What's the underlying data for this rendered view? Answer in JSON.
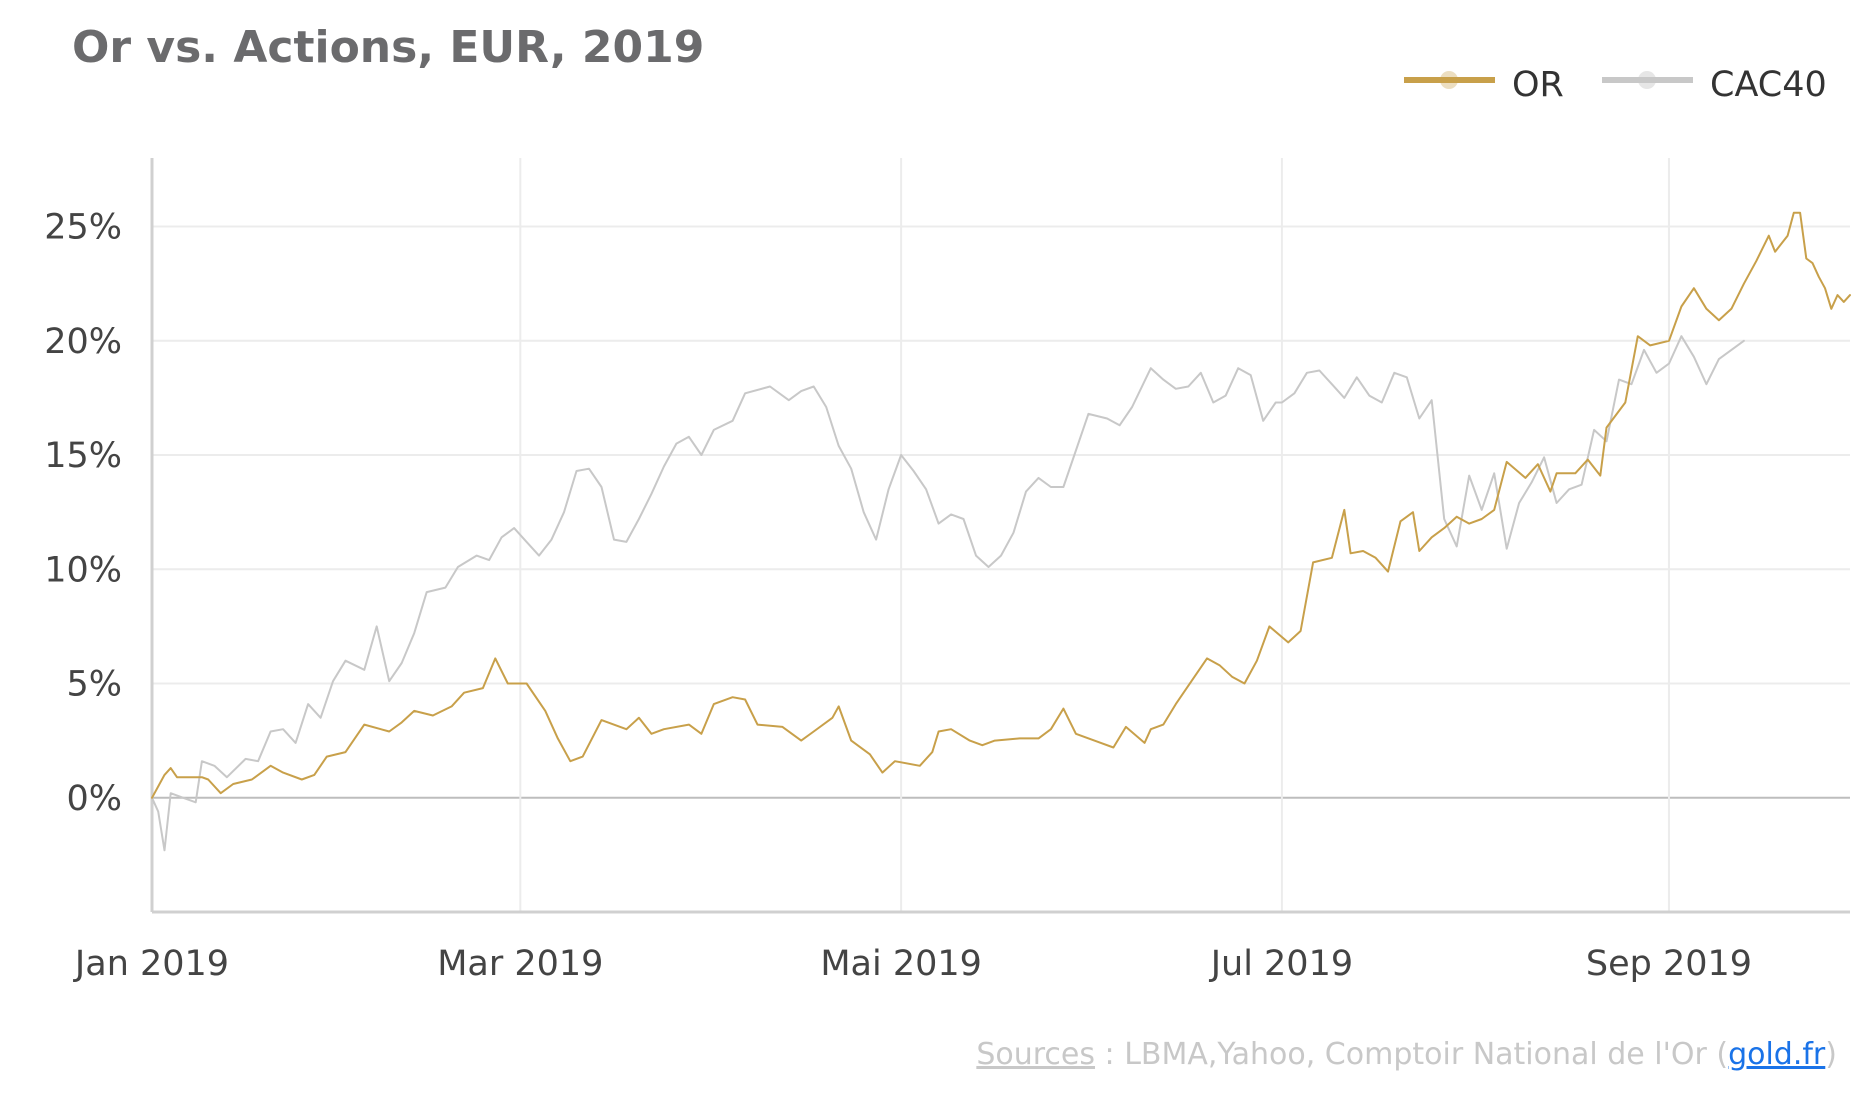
{
  "chart_data": {
    "type": "line",
    "title": "Or vs. Actions,  EUR, 2019",
    "x_tick_labels": [
      "Jan 2019",
      "Mar 2019",
      "Mai 2019",
      "Jul 2019",
      "Sep 2019"
    ],
    "x_tick_dates": [
      "2019-01-01",
      "2019-03-01",
      "2019-05-01",
      "2019-07-01",
      "2019-09-01"
    ],
    "x_range": [
      "2019-01-01",
      "2019-09-30"
    ],
    "y_tick_labels": [
      "0%",
      "5%",
      "10%",
      "15%",
      "20%",
      "25%"
    ],
    "y_ticks": [
      0,
      5,
      10,
      15,
      20,
      25
    ],
    "ylim": [
      -5,
      28
    ],
    "y_unit": "%",
    "grid": true,
    "legend_position": "top-right",
    "series": [
      {
        "name": "OR",
        "color": "#c8a04a",
        "points": [
          [
            "2019-01-01",
            0
          ],
          [
            "2019-01-03",
            1.0
          ],
          [
            "2019-01-04",
            1.3
          ],
          [
            "2019-01-05",
            0.9
          ],
          [
            "2019-01-09",
            0.9
          ],
          [
            "2019-01-10",
            0.8
          ],
          [
            "2019-01-12",
            0.2
          ],
          [
            "2019-01-14",
            0.6
          ],
          [
            "2019-01-17",
            0.8
          ],
          [
            "2019-01-20",
            1.4
          ],
          [
            "2019-01-22",
            1.1
          ],
          [
            "2019-01-25",
            0.8
          ],
          [
            "2019-01-27",
            1.0
          ],
          [
            "2019-01-29",
            1.8
          ],
          [
            "2019-02-01",
            2.0
          ],
          [
            "2019-02-04",
            3.2
          ],
          [
            "2019-02-08",
            2.9
          ],
          [
            "2019-02-10",
            3.3
          ],
          [
            "2019-02-12",
            3.8
          ],
          [
            "2019-02-15",
            3.6
          ],
          [
            "2019-02-18",
            4.0
          ],
          [
            "2019-02-20",
            4.6
          ],
          [
            "2019-02-23",
            4.8
          ],
          [
            "2019-02-25",
            6.1
          ],
          [
            "2019-02-27",
            5.0
          ],
          [
            "2019-03-02",
            5.0
          ],
          [
            "2019-03-05",
            3.8
          ],
          [
            "2019-03-07",
            2.6
          ],
          [
            "2019-03-09",
            1.6
          ],
          [
            "2019-03-11",
            1.8
          ],
          [
            "2019-03-14",
            3.4
          ],
          [
            "2019-03-18",
            3.0
          ],
          [
            "2019-03-20",
            3.5
          ],
          [
            "2019-03-22",
            2.8
          ],
          [
            "2019-03-24",
            3.0
          ],
          [
            "2019-03-28",
            3.2
          ],
          [
            "2019-03-30",
            2.8
          ],
          [
            "2019-04-01",
            4.1
          ],
          [
            "2019-04-04",
            4.4
          ],
          [
            "2019-04-06",
            4.3
          ],
          [
            "2019-04-08",
            3.2
          ],
          [
            "2019-04-12",
            3.1
          ],
          [
            "2019-04-15",
            2.5
          ],
          [
            "2019-04-17",
            2.9
          ],
          [
            "2019-04-20",
            3.5
          ],
          [
            "2019-04-21",
            4.0
          ],
          [
            "2019-04-23",
            2.5
          ],
          [
            "2019-04-26",
            1.9
          ],
          [
            "2019-04-28",
            1.1
          ],
          [
            "2019-04-30",
            1.6
          ],
          [
            "2019-05-04",
            1.4
          ],
          [
            "2019-05-06",
            2.0
          ],
          [
            "2019-05-07",
            2.9
          ],
          [
            "2019-05-09",
            3.0
          ],
          [
            "2019-05-12",
            2.5
          ],
          [
            "2019-05-14",
            2.3
          ],
          [
            "2019-05-16",
            2.5
          ],
          [
            "2019-05-20",
            2.6
          ],
          [
            "2019-05-23",
            2.6
          ],
          [
            "2019-05-25",
            3.0
          ],
          [
            "2019-05-27",
            3.9
          ],
          [
            "2019-05-29",
            2.8
          ],
          [
            "2019-06-02",
            2.4
          ],
          [
            "2019-06-04",
            2.2
          ],
          [
            "2019-06-06",
            3.1
          ],
          [
            "2019-06-09",
            2.4
          ],
          [
            "2019-06-10",
            3.0
          ],
          [
            "2019-06-12",
            3.2
          ],
          [
            "2019-06-14",
            4.1
          ],
          [
            "2019-06-17",
            5.3
          ],
          [
            "2019-06-19",
            6.1
          ],
          [
            "2019-06-21",
            5.8
          ],
          [
            "2019-06-23",
            5.3
          ],
          [
            "2019-06-25",
            5.0
          ],
          [
            "2019-06-27",
            6.0
          ],
          [
            "2019-06-29",
            7.5
          ],
          [
            "2019-07-02",
            6.8
          ],
          [
            "2019-07-04",
            7.3
          ],
          [
            "2019-07-06",
            10.3
          ],
          [
            "2019-07-09",
            10.5
          ],
          [
            "2019-07-11",
            12.6
          ],
          [
            "2019-07-12",
            10.7
          ],
          [
            "2019-07-14",
            10.8
          ],
          [
            "2019-07-16",
            10.5
          ],
          [
            "2019-07-18",
            9.9
          ],
          [
            "2019-07-20",
            12.1
          ],
          [
            "2019-07-22",
            12.5
          ],
          [
            "2019-07-23",
            10.8
          ],
          [
            "2019-07-25",
            11.4
          ],
          [
            "2019-07-27",
            11.8
          ],
          [
            "2019-07-29",
            12.3
          ],
          [
            "2019-07-31",
            12.0
          ],
          [
            "2019-08-02",
            12.2
          ],
          [
            "2019-08-04",
            12.6
          ],
          [
            "2019-08-06",
            14.7
          ],
          [
            "2019-08-09",
            14.0
          ],
          [
            "2019-08-11",
            14.6
          ],
          [
            "2019-08-13",
            13.4
          ],
          [
            "2019-08-14",
            14.2
          ],
          [
            "2019-08-17",
            14.2
          ],
          [
            "2019-08-19",
            14.8
          ],
          [
            "2019-08-21",
            14.1
          ],
          [
            "2019-08-22",
            16.2
          ],
          [
            "2019-08-25",
            17.3
          ],
          [
            "2019-08-27",
            20.2
          ],
          [
            "2019-08-29",
            19.8
          ],
          [
            "2019-09-01",
            20.0
          ],
          [
            "2019-09-03",
            21.5
          ],
          [
            "2019-09-05",
            22.3
          ],
          [
            "2019-09-07",
            21.4
          ],
          [
            "2019-09-09",
            20.9
          ],
          [
            "2019-09-11",
            21.4
          ],
          [
            "2019-09-13",
            22.5
          ],
          [
            "2019-09-15",
            23.5
          ],
          [
            "2019-09-17",
            24.6
          ],
          [
            "2019-09-18",
            23.9
          ],
          [
            "2019-09-20",
            24.6
          ],
          [
            "2019-09-21",
            25.6
          ],
          [
            "2019-09-22",
            25.6
          ],
          [
            "2019-09-23",
            23.6
          ],
          [
            "2019-09-24",
            23.4
          ],
          [
            "2019-09-25",
            22.8
          ],
          [
            "2019-09-26",
            22.3
          ],
          [
            "2019-09-27",
            21.4
          ],
          [
            "2019-09-28",
            22.0
          ],
          [
            "2019-09-29",
            21.7
          ],
          [
            "2019-09-30",
            22.0
          ]
        ]
      },
      {
        "name": "CAC40",
        "color": "#c8c8c8",
        "points": [
          [
            "2019-01-01",
            0
          ],
          [
            "2019-01-02",
            -0.6
          ],
          [
            "2019-01-03",
            -2.3
          ],
          [
            "2019-01-04",
            0.2
          ],
          [
            "2019-01-06",
            0.0
          ],
          [
            "2019-01-08",
            -0.2
          ],
          [
            "2019-01-09",
            1.6
          ],
          [
            "2019-01-11",
            1.4
          ],
          [
            "2019-01-13",
            0.9
          ],
          [
            "2019-01-16",
            1.7
          ],
          [
            "2019-01-18",
            1.6
          ],
          [
            "2019-01-20",
            2.9
          ],
          [
            "2019-01-22",
            3.0
          ],
          [
            "2019-01-24",
            2.4
          ],
          [
            "2019-01-26",
            4.1
          ],
          [
            "2019-01-28",
            3.5
          ],
          [
            "2019-01-30",
            5.1
          ],
          [
            "2019-02-01",
            6.0
          ],
          [
            "2019-02-04",
            5.6
          ],
          [
            "2019-02-06",
            7.5
          ],
          [
            "2019-02-08",
            5.1
          ],
          [
            "2019-02-10",
            5.9
          ],
          [
            "2019-02-12",
            7.2
          ],
          [
            "2019-02-14",
            9.0
          ],
          [
            "2019-02-17",
            9.2
          ],
          [
            "2019-02-19",
            10.1
          ],
          [
            "2019-02-22",
            10.6
          ],
          [
            "2019-02-24",
            10.4
          ],
          [
            "2019-02-26",
            11.4
          ],
          [
            "2019-02-28",
            11.8
          ],
          [
            "2019-03-02",
            11.2
          ],
          [
            "2019-03-04",
            10.6
          ],
          [
            "2019-03-06",
            11.3
          ],
          [
            "2019-03-08",
            12.5
          ],
          [
            "2019-03-10",
            14.3
          ],
          [
            "2019-03-12",
            14.4
          ],
          [
            "2019-03-14",
            13.6
          ],
          [
            "2019-03-16",
            11.3
          ],
          [
            "2019-03-18",
            11.2
          ],
          [
            "2019-03-20",
            12.2
          ],
          [
            "2019-03-22",
            13.3
          ],
          [
            "2019-03-24",
            14.5
          ],
          [
            "2019-03-26",
            15.5
          ],
          [
            "2019-03-28",
            15.8
          ],
          [
            "2019-03-30",
            15.0
          ],
          [
            "2019-04-01",
            16.1
          ],
          [
            "2019-04-04",
            16.5
          ],
          [
            "2019-04-06",
            17.7
          ],
          [
            "2019-04-10",
            18.0
          ],
          [
            "2019-04-13",
            17.4
          ],
          [
            "2019-04-15",
            17.8
          ],
          [
            "2019-04-17",
            18.0
          ],
          [
            "2019-04-19",
            17.1
          ],
          [
            "2019-04-21",
            15.4
          ],
          [
            "2019-04-23",
            14.4
          ],
          [
            "2019-04-25",
            12.5
          ],
          [
            "2019-04-27",
            11.3
          ],
          [
            "2019-04-29",
            13.5
          ],
          [
            "2019-05-01",
            15.0
          ],
          [
            "2019-05-03",
            14.3
          ],
          [
            "2019-05-05",
            13.5
          ],
          [
            "2019-05-07",
            12.0
          ],
          [
            "2019-05-09",
            12.4
          ],
          [
            "2019-05-11",
            12.2
          ],
          [
            "2019-05-13",
            10.6
          ],
          [
            "2019-05-15",
            10.1
          ],
          [
            "2019-05-17",
            10.6
          ],
          [
            "2019-05-19",
            11.6
          ],
          [
            "2019-05-21",
            13.4
          ],
          [
            "2019-05-23",
            14.0
          ],
          [
            "2019-05-25",
            13.6
          ],
          [
            "2019-05-27",
            13.6
          ],
          [
            "2019-05-29",
            15.2
          ],
          [
            "2019-05-31",
            16.8
          ],
          [
            "2019-06-03",
            16.6
          ],
          [
            "2019-06-05",
            16.3
          ],
          [
            "2019-06-07",
            17.1
          ],
          [
            "2019-06-10",
            18.8
          ],
          [
            "2019-06-12",
            18.3
          ],
          [
            "2019-06-14",
            17.9
          ],
          [
            "2019-06-16",
            18.0
          ],
          [
            "2019-06-18",
            18.6
          ],
          [
            "2019-06-20",
            17.3
          ],
          [
            "2019-06-22",
            17.6
          ],
          [
            "2019-06-24",
            18.8
          ],
          [
            "2019-06-26",
            18.5
          ],
          [
            "2019-06-28",
            16.5
          ],
          [
            "2019-06-30",
            17.3
          ],
          [
            "2019-07-01",
            17.3
          ],
          [
            "2019-07-03",
            17.7
          ],
          [
            "2019-07-05",
            18.6
          ],
          [
            "2019-07-07",
            18.7
          ],
          [
            "2019-07-09",
            18.1
          ],
          [
            "2019-07-11",
            17.5
          ],
          [
            "2019-07-13",
            18.4
          ],
          [
            "2019-07-15",
            17.6
          ],
          [
            "2019-07-17",
            17.3
          ],
          [
            "2019-07-19",
            18.6
          ],
          [
            "2019-07-21",
            18.4
          ],
          [
            "2019-07-23",
            16.6
          ],
          [
            "2019-07-25",
            17.4
          ],
          [
            "2019-07-27",
            12.2
          ],
          [
            "2019-07-29",
            11.0
          ],
          [
            "2019-07-31",
            14.1
          ],
          [
            "2019-08-02",
            12.6
          ],
          [
            "2019-08-04",
            14.2
          ],
          [
            "2019-08-06",
            10.9
          ],
          [
            "2019-08-08",
            12.9
          ],
          [
            "2019-08-10",
            13.8
          ],
          [
            "2019-08-12",
            14.9
          ],
          [
            "2019-08-14",
            12.9
          ],
          [
            "2019-08-16",
            13.5
          ],
          [
            "2019-08-18",
            13.7
          ],
          [
            "2019-08-20",
            16.1
          ],
          [
            "2019-08-22",
            15.6
          ],
          [
            "2019-08-24",
            18.3
          ],
          [
            "2019-08-26",
            18.1
          ],
          [
            "2019-08-28",
            19.6
          ],
          [
            "2019-08-30",
            18.6
          ],
          [
            "2019-09-01",
            19.0
          ],
          [
            "2019-09-03",
            20.2
          ],
          [
            "2019-09-05",
            19.3
          ],
          [
            "2019-09-07",
            18.1
          ],
          [
            "2019-09-09",
            19.2
          ],
          [
            "2019-09-11",
            19.6
          ],
          [
            "2019-09-13",
            20.0
          ]
        ]
      }
    ]
  },
  "legend": {
    "items": [
      {
        "label": "OR",
        "color": "#c8a04a"
      },
      {
        "label": "CAC40",
        "color": "#c8c8c8"
      }
    ]
  },
  "source": {
    "sources_label": "Sources",
    "text": " : LBMA,Yahoo, Comptoir National de l'Or (",
    "link_label": "gold.fr",
    "close": ")"
  }
}
